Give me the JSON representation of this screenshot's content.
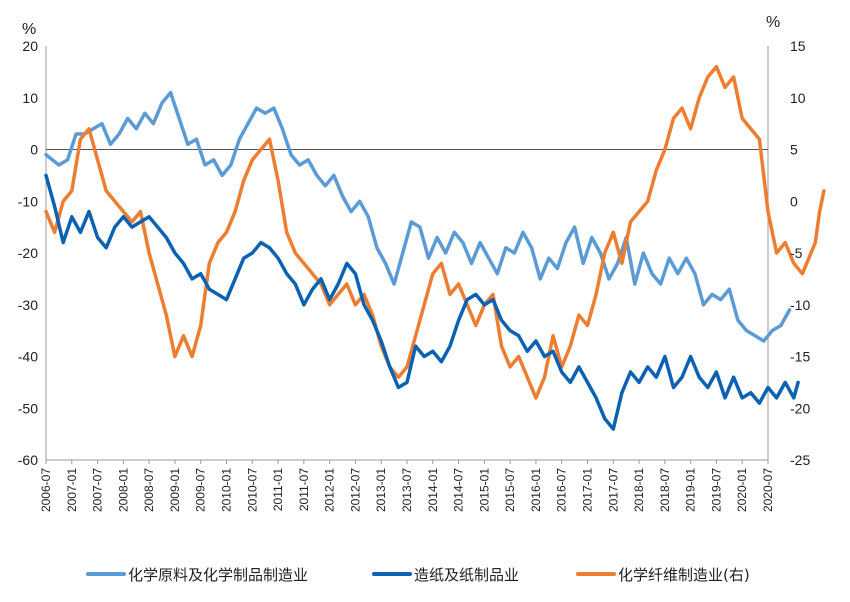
{
  "chart_data": {
    "type": "line",
    "title": "",
    "left_axis": {
      "unit_label": "%",
      "ylim": [
        -60,
        20
      ],
      "ticks": [
        20,
        10,
        0,
        -10,
        -20,
        -30,
        -40,
        -50,
        -60
      ]
    },
    "right_axis": {
      "unit_label": "%",
      "ylim": [
        -25,
        15
      ],
      "ticks": [
        15,
        10,
        5,
        0,
        -5,
        -10,
        -15,
        -20,
        -25
      ]
    },
    "x_ticks": [
      "2006-07",
      "2007-01",
      "2007-07",
      "2008-01",
      "2008-07",
      "2009-01",
      "2009-07",
      "2010-01",
      "2010-07",
      "2011-01",
      "2011-07",
      "2012-01",
      "2012-07",
      "2013-01",
      "2013-07",
      "2014-01",
      "2014-07",
      "2015-01",
      "2015-07",
      "2016-01",
      "2016-07",
      "2017-01",
      "2017-07",
      "2018-01",
      "2018-07",
      "2019-01",
      "2019-07",
      "2020-01",
      "2020-07"
    ],
    "x_start": "2006-07",
    "x_end": "2020-07",
    "series": [
      {
        "name": "化学原料及化学制品制造业",
        "axis": "left",
        "color": "#5b9bd5",
        "points": [
          [
            0,
            -1
          ],
          [
            3,
            -3
          ],
          [
            5,
            -2
          ],
          [
            7,
            3
          ],
          [
            9,
            3
          ],
          [
            11,
            4
          ],
          [
            13,
            5
          ],
          [
            15,
            1
          ],
          [
            17,
            3
          ],
          [
            19,
            6
          ],
          [
            21,
            4
          ],
          [
            23,
            7
          ],
          [
            25,
            5
          ],
          [
            27,
            9
          ],
          [
            29,
            11
          ],
          [
            31,
            6
          ],
          [
            33,
            1
          ],
          [
            35,
            2
          ],
          [
            37,
            -3
          ],
          [
            39,
            -2
          ],
          [
            41,
            -5
          ],
          [
            43,
            -3
          ],
          [
            45,
            2
          ],
          [
            47,
            5
          ],
          [
            49,
            8
          ],
          [
            51,
            7
          ],
          [
            53,
            8
          ],
          [
            55,
            4
          ],
          [
            57,
            -1
          ],
          [
            59,
            -3
          ],
          [
            61,
            -2
          ],
          [
            63,
            -5
          ],
          [
            65,
            -7
          ],
          [
            67,
            -5
          ],
          [
            69,
            -9
          ],
          [
            71,
            -12
          ],
          [
            73,
            -10
          ],
          [
            75,
            -13
          ],
          [
            77,
            -19
          ],
          [
            79,
            -22
          ],
          [
            81,
            -26
          ],
          [
            83,
            -20
          ],
          [
            85,
            -14
          ],
          [
            87,
            -15
          ],
          [
            89,
            -21
          ],
          [
            91,
            -17
          ],
          [
            93,
            -20
          ],
          [
            95,
            -16
          ],
          [
            97,
            -18
          ],
          [
            99,
            -22
          ],
          [
            101,
            -18
          ],
          [
            103,
            -21
          ],
          [
            105,
            -24
          ],
          [
            107,
            -19
          ],
          [
            109,
            -20
          ],
          [
            111,
            -16
          ],
          [
            113,
            -19
          ],
          [
            115,
            -25
          ],
          [
            117,
            -21
          ],
          [
            119,
            -23
          ],
          [
            121,
            -18
          ],
          [
            123,
            -15
          ],
          [
            125,
            -22
          ],
          [
            127,
            -17
          ],
          [
            129,
            -20
          ],
          [
            131,
            -25
          ],
          [
            133,
            -22
          ],
          [
            135,
            -17
          ],
          [
            137,
            -26
          ],
          [
            139,
            -20
          ],
          [
            141,
            -24
          ],
          [
            143,
            -26
          ],
          [
            145,
            -21
          ],
          [
            147,
            -24
          ],
          [
            149,
            -21
          ],
          [
            151,
            -24
          ],
          [
            153,
            -30
          ],
          [
            155,
            -28
          ],
          [
            157,
            -29
          ],
          [
            159,
            -27
          ],
          [
            161,
            -33
          ],
          [
            163,
            -35
          ],
          [
            165,
            -36
          ],
          [
            167,
            -37
          ],
          [
            169,
            -35
          ],
          [
            171,
            -34
          ],
          [
            173,
            -31
          ]
        ]
      },
      {
        "name": "造纸及纸制品业",
        "axis": "left",
        "color": "#0b62b3",
        "points": [
          [
            0,
            -5
          ],
          [
            2,
            -11
          ],
          [
            4,
            -18
          ],
          [
            6,
            -13
          ],
          [
            8,
            -16
          ],
          [
            10,
            -12
          ],
          [
            12,
            -17
          ],
          [
            14,
            -19
          ],
          [
            16,
            -15
          ],
          [
            18,
            -13
          ],
          [
            20,
            -15
          ],
          [
            22,
            -14
          ],
          [
            24,
            -13
          ],
          [
            26,
            -15
          ],
          [
            28,
            -17
          ],
          [
            30,
            -20
          ],
          [
            32,
            -22
          ],
          [
            34,
            -25
          ],
          [
            36,
            -24
          ],
          [
            38,
            -27
          ],
          [
            40,
            -28
          ],
          [
            42,
            -29
          ],
          [
            44,
            -25
          ],
          [
            46,
            -21
          ],
          [
            48,
            -20
          ],
          [
            50,
            -18
          ],
          [
            52,
            -19
          ],
          [
            54,
            -21
          ],
          [
            56,
            -24
          ],
          [
            58,
            -26
          ],
          [
            60,
            -30
          ],
          [
            62,
            -27
          ],
          [
            64,
            -25
          ],
          [
            66,
            -29
          ],
          [
            68,
            -26
          ],
          [
            70,
            -22
          ],
          [
            72,
            -24
          ],
          [
            74,
            -30
          ],
          [
            76,
            -33
          ],
          [
            78,
            -37
          ],
          [
            80,
            -42
          ],
          [
            82,
            -46
          ],
          [
            84,
            -45
          ],
          [
            86,
            -38
          ],
          [
            88,
            -40
          ],
          [
            90,
            -39
          ],
          [
            92,
            -41
          ],
          [
            94,
            -38
          ],
          [
            96,
            -33
          ],
          [
            98,
            -29
          ],
          [
            100,
            -28
          ],
          [
            102,
            -30
          ],
          [
            104,
            -29
          ],
          [
            106,
            -33
          ],
          [
            108,
            -35
          ],
          [
            110,
            -36
          ],
          [
            112,
            -39
          ],
          [
            114,
            -37
          ],
          [
            116,
            -40
          ],
          [
            118,
            -39
          ],
          [
            120,
            -43
          ],
          [
            122,
            -45
          ],
          [
            124,
            -42
          ],
          [
            126,
            -45
          ],
          [
            128,
            -48
          ],
          [
            130,
            -52
          ],
          [
            132,
            -54
          ],
          [
            134,
            -47
          ],
          [
            136,
            -43
          ],
          [
            138,
            -45
          ],
          [
            140,
            -42
          ],
          [
            142,
            -44
          ],
          [
            144,
            -40
          ],
          [
            146,
            -46
          ],
          [
            148,
            -44
          ],
          [
            150,
            -40
          ],
          [
            152,
            -44
          ],
          [
            154,
            -46
          ],
          [
            156,
            -43
          ],
          [
            158,
            -48
          ],
          [
            160,
            -44
          ],
          [
            162,
            -48
          ],
          [
            164,
            -47
          ],
          [
            166,
            -49
          ],
          [
            168,
            -46
          ],
          [
            170,
            -48
          ],
          [
            172,
            -45
          ],
          [
            174,
            -48
          ],
          [
            175,
            -45
          ]
        ]
      },
      {
        "name": "化学纤维制造业(右)",
        "axis": "right",
        "color": "#ed7d31",
        "points": [
          [
            0,
            -1
          ],
          [
            2,
            -3
          ],
          [
            4,
            0
          ],
          [
            6,
            1
          ],
          [
            8,
            6
          ],
          [
            10,
            7
          ],
          [
            12,
            4
          ],
          [
            14,
            1
          ],
          [
            16,
            0
          ],
          [
            18,
            -1
          ],
          [
            20,
            -2
          ],
          [
            22,
            -1
          ],
          [
            24,
            -5
          ],
          [
            26,
            -8
          ],
          [
            28,
            -11
          ],
          [
            30,
            -15
          ],
          [
            32,
            -13
          ],
          [
            34,
            -15
          ],
          [
            36,
            -12
          ],
          [
            38,
            -6
          ],
          [
            40,
            -4
          ],
          [
            42,
            -3
          ],
          [
            44,
            -1
          ],
          [
            46,
            2
          ],
          [
            48,
            4
          ],
          [
            50,
            5
          ],
          [
            52,
            6
          ],
          [
            54,
            2
          ],
          [
            56,
            -3
          ],
          [
            58,
            -5
          ],
          [
            60,
            -6
          ],
          [
            62,
            -7
          ],
          [
            64,
            -8
          ],
          [
            66,
            -10
          ],
          [
            68,
            -9
          ],
          [
            70,
            -8
          ],
          [
            72,
            -10
          ],
          [
            74,
            -9
          ],
          [
            76,
            -11
          ],
          [
            78,
            -14
          ],
          [
            80,
            -16
          ],
          [
            82,
            -17
          ],
          [
            84,
            -16
          ],
          [
            86,
            -13
          ],
          [
            88,
            -10
          ],
          [
            90,
            -7
          ],
          [
            92,
            -6
          ],
          [
            94,
            -9
          ],
          [
            96,
            -8
          ],
          [
            98,
            -10
          ],
          [
            100,
            -12
          ],
          [
            102,
            -10
          ],
          [
            104,
            -9
          ],
          [
            106,
            -14
          ],
          [
            108,
            -16
          ],
          [
            110,
            -15
          ],
          [
            112,
            -17
          ],
          [
            114,
            -19
          ],
          [
            116,
            -17
          ],
          [
            118,
            -13
          ],
          [
            120,
            -16
          ],
          [
            122,
            -14
          ],
          [
            124,
            -11
          ],
          [
            126,
            -12
          ],
          [
            128,
            -9
          ],
          [
            130,
            -5
          ],
          [
            132,
            -3
          ],
          [
            134,
            -6
          ],
          [
            136,
            -2
          ],
          [
            138,
            -1
          ],
          [
            140,
            0
          ],
          [
            142,
            3
          ],
          [
            144,
            5
          ],
          [
            146,
            8
          ],
          [
            148,
            9
          ],
          [
            150,
            7
          ],
          [
            152,
            10
          ],
          [
            154,
            12
          ],
          [
            156,
            13
          ],
          [
            158,
            11
          ],
          [
            160,
            12
          ],
          [
            162,
            8
          ],
          [
            164,
            7
          ],
          [
            166,
            6
          ],
          [
            168,
            -1
          ],
          [
            170,
            -5
          ],
          [
            172,
            -4
          ],
          [
            174,
            -6
          ],
          [
            176,
            -7
          ],
          [
            178,
            -5
          ],
          [
            179,
            -4
          ],
          [
            180,
            -1
          ],
          [
            181,
            1
          ]
        ]
      }
    ]
  }
}
